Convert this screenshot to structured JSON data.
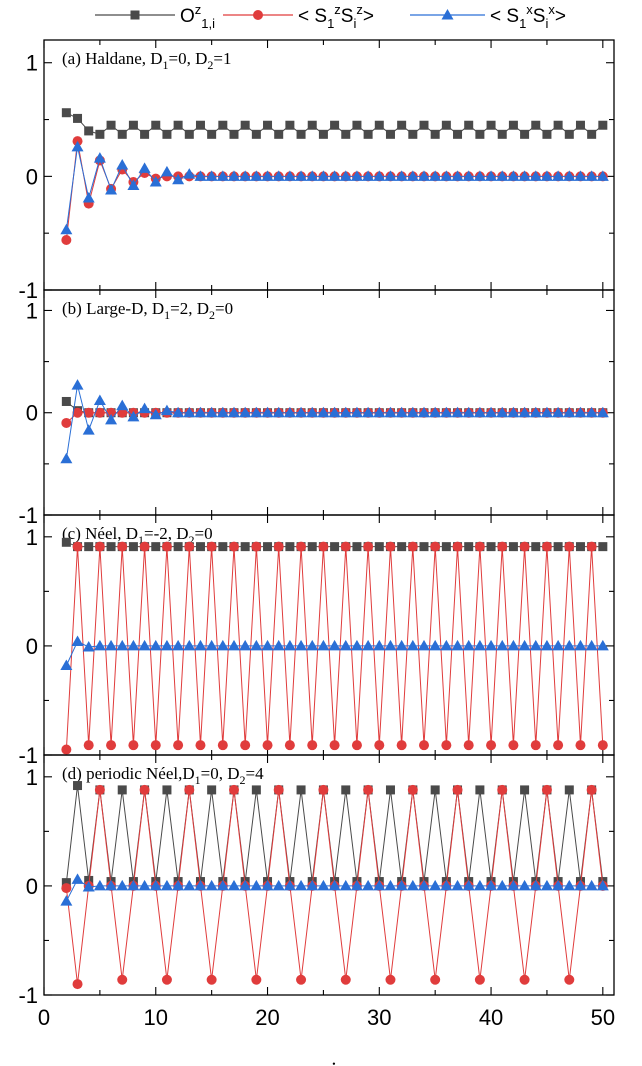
{
  "legend": {
    "series1": {
      "main": "O",
      "sup": "z",
      "sub": "1,i"
    },
    "series2": {
      "parts": [
        "< S",
        "1",
        "z",
        "S",
        "i",
        "z",
        ">"
      ]
    },
    "series3": {
      "parts": [
        "< S",
        "1",
        "x",
        "S",
        "i",
        "x",
        ">"
      ]
    }
  },
  "chart_data": {
    "type": "line",
    "xlabel": "i",
    "xlim": [
      0,
      51
    ],
    "xticks": [
      0,
      10,
      20,
      30,
      40,
      50
    ],
    "ylim": [
      -1,
      1.2
    ],
    "yticks": [
      -1,
      0,
      1
    ],
    "series_styles": [
      {
        "key": "O_z",
        "color": "#4a4a4a",
        "marker": "square"
      },
      {
        "key": "SzSz",
        "color": "#e03c3c",
        "marker": "circle"
      },
      {
        "key": "SxSx",
        "color": "#2a6fd6",
        "marker": "triangle"
      }
    ],
    "panels": [
      {
        "label": {
          "prefix": "(a) Haldane, D",
          "d1sub": "1",
          "d1val": "=0, D",
          "d2sub": "2",
          "d2val": "=1"
        },
        "rule": "haldane",
        "O_z": {
          "start": [
            0.56,
            0.51,
            0.4
          ],
          "even": 0.45,
          "odd": 0.37
        },
        "SzSz": {
          "start": [
            -0.56,
            0.31,
            -0.24,
            0.14,
            -0.11,
            0.06,
            -0.05,
            0.03,
            -0.02
          ]
        },
        "SxSx": {
          "start": [
            -0.47,
            0.26,
            -0.19,
            0.16,
            -0.12,
            0.1,
            -0.08,
            0.07,
            -0.05,
            0.04,
            -0.03,
            0.02
          ]
        }
      },
      {
        "label": {
          "prefix": "(b) Large-D, D",
          "d1sub": "1",
          "d1val": "=2, D",
          "d2sub": "2",
          "d2val": "=0"
        },
        "rule": "large-d",
        "O_z": {
          "start": [
            0.11,
            0.02,
            0.0
          ]
        },
        "SzSz": {
          "start": [
            -0.1,
            0.0
          ]
        },
        "SxSx": {
          "start": [
            -0.45,
            0.27,
            -0.17,
            0.12,
            -0.07,
            0.07,
            -0.04,
            0.04,
            -0.02,
            0.02
          ]
        }
      },
      {
        "label": {
          "prefix": "(c) Néel, D",
          "d1sub": "1",
          "d1val": "=-2, D",
          "d2sub": "2",
          "d2val": "=0"
        },
        "rule": "neel",
        "O_z": {
          "start": [
            0.95
          ],
          "value": 0.91
        },
        "SzSz": {
          "start": [
            -0.95
          ],
          "even": -0.91,
          "odd": 0.91
        },
        "SxSx": {
          "start": [
            -0.18,
            0.04,
            -0.01
          ],
          "value": 0.0
        }
      },
      {
        "label": {
          "prefix": "(d) periodic Néel,D",
          "d1sub": "1",
          "d1val": "=0, D",
          "d2sub": "2",
          "d2val": "=4"
        },
        "rule": "periodic",
        "O_z": {
          "start": [
            0.03,
            0.92,
            0.05
          ],
          "odd": 0.88,
          "even": 0.04
        },
        "SzSz": {
          "start": [
            -0.02,
            -0.9,
            0.0
          ],
          "odd_mod1": 0.88,
          "odd_mod3": -0.86,
          "even": 0.0
        },
        "SxSx": {
          "start": [
            -0.14,
            0.06,
            -0.01
          ],
          "value": 0.0
        }
      }
    ]
  }
}
